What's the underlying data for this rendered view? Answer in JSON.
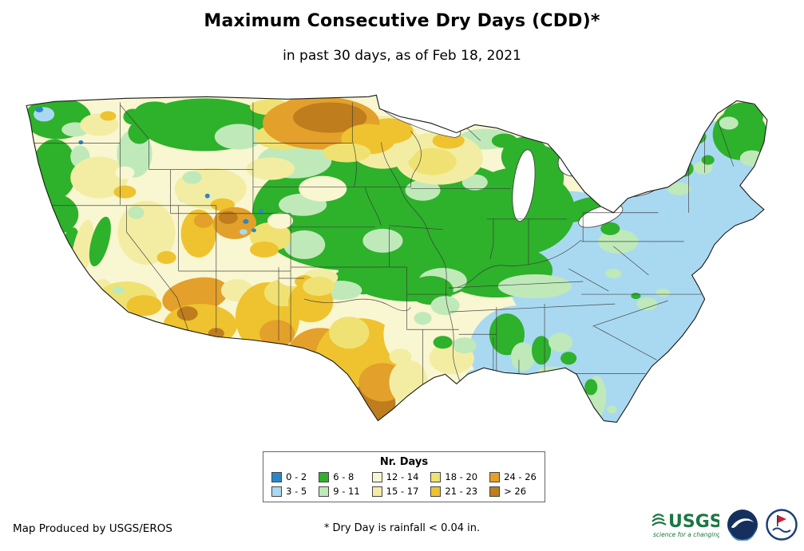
{
  "header": {
    "title": "Maximum Consecutive Dry Days (CDD)*",
    "subtitle": "in past 30 days, as of Feb 18, 2021"
  },
  "legend": {
    "title": "Nr. Days",
    "colors": {
      "c02": "#2b87c8",
      "c35": "#a9d9f0",
      "c68": "#2eb12b",
      "c911": "#bfe9b9",
      "c1214": "#f9f6d2",
      "c1517": "#f3eda4",
      "c1820": "#f0e272",
      "c2123": "#eec32f",
      "c2426": "#e3a02a",
      "c26p": "#bf7d1e"
    },
    "columns": [
      [
        {
          "label": "0 - 2",
          "color": "c02"
        },
        {
          "label": "3 - 5",
          "color": "c35"
        }
      ],
      [
        {
          "label": "6 - 8",
          "color": "c68"
        },
        {
          "label": "9 - 11",
          "color": "c911"
        }
      ],
      [
        {
          "label": "12 - 14",
          "color": "c1214"
        },
        {
          "label": "15 - 17",
          "color": "c1517"
        }
      ],
      [
        {
          "label": "18 - 20",
          "color": "c1820"
        },
        {
          "label": "21 - 23",
          "color": "c2123"
        }
      ],
      [
        {
          "label": "24 - 26",
          "color": "c2426"
        },
        {
          "label": "> 26",
          "color": "c26p"
        }
      ]
    ]
  },
  "footer": {
    "credit": "Map Produced by USGS/EROS",
    "footnote": "* Dry Day is rainfall < 0.04 in."
  },
  "logos": {
    "usgs_name": "USGS",
    "usgs_tagline": "science for a changing world",
    "usgs_green": "#1b7742",
    "noaa_navy": "#16305e",
    "nws_navy": "#1c3f77",
    "nws_red": "#cc2233"
  }
}
